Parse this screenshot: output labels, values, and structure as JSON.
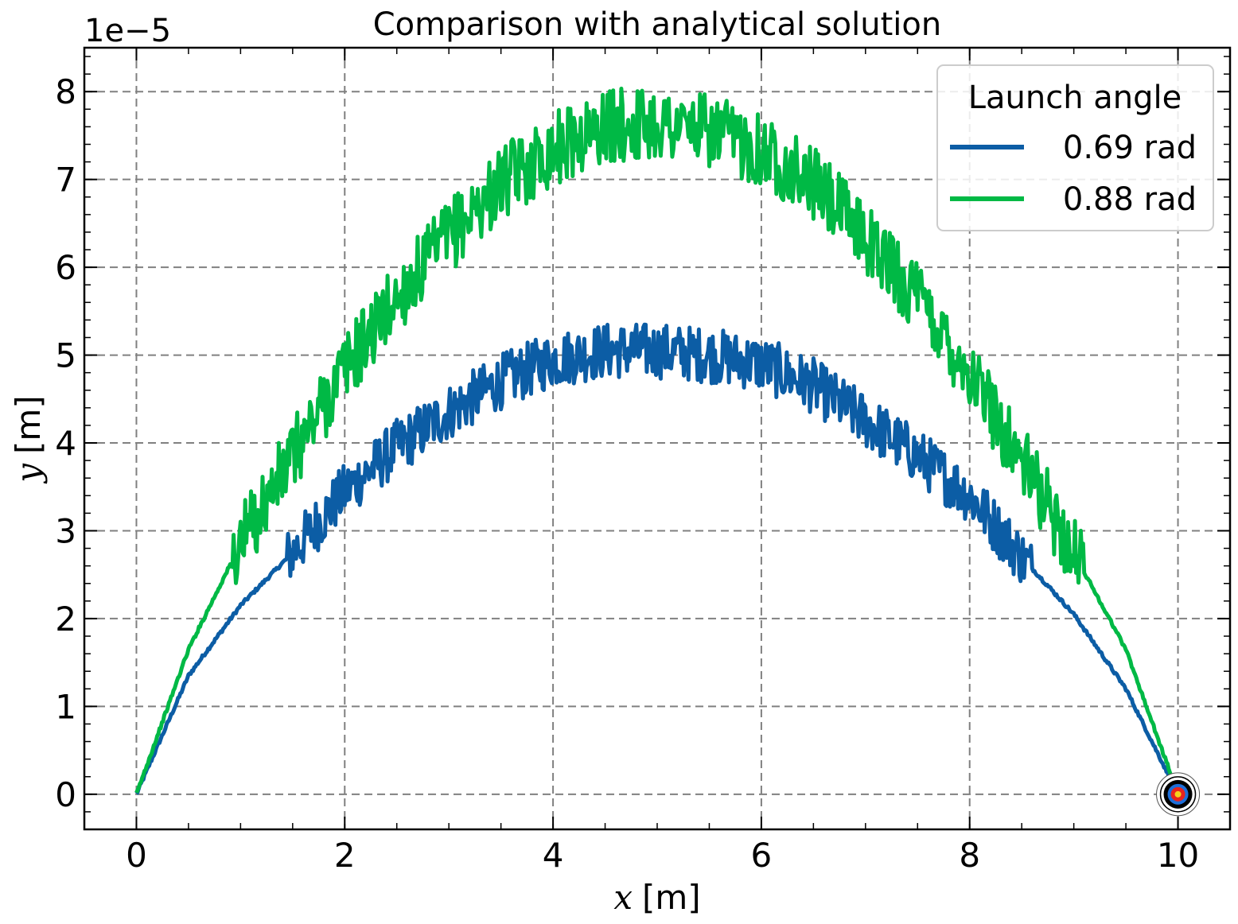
{
  "chart_data": {
    "type": "line",
    "title": "Comparison with analytical solution",
    "xlabel_var": "x",
    "xlabel_unit": "[m]",
    "ylabel_var": "y",
    "ylabel_unit": "[m]",
    "y_offset_text": "1e−5",
    "xlim": [
      -0.5,
      10.5
    ],
    "ylim": [
      -0.4,
      8.5
    ],
    "y_scale_factor": 1e-05,
    "x_ticks": [
      0,
      2,
      4,
      6,
      8,
      10
    ],
    "x_tick_labels": [
      "0",
      "2",
      "4",
      "6",
      "8",
      "10"
    ],
    "y_ticks": [
      0,
      1,
      2,
      3,
      4,
      5,
      6,
      7,
      8
    ],
    "y_tick_labels": [
      "0",
      "1",
      "2",
      "3",
      "4",
      "5",
      "6",
      "7",
      "8"
    ],
    "grid": true,
    "legend": {
      "title": "Launch angle",
      "position": "upper-right"
    },
    "target_marker": {
      "x": 10,
      "y": 0,
      "icon": "bullseye-target-icon"
    },
    "series": [
      {
        "name": "0.69 rad",
        "color": "#0c5da5",
        "x": [
          0,
          0.5,
          1.0,
          1.5,
          2.0,
          2.5,
          3.0,
          3.5,
          4.0,
          4.5,
          5.0,
          5.5,
          6.0,
          6.5,
          7.0,
          7.5,
          8.0,
          8.5,
          9.0,
          9.5,
          10.0
        ],
        "y": [
          0,
          1.35,
          2.15,
          2.75,
          3.45,
          3.95,
          4.35,
          4.7,
          4.95,
          5.05,
          5.05,
          5.0,
          4.9,
          4.65,
          4.25,
          3.85,
          3.4,
          2.7,
          2.05,
          1.2,
          0
        ]
      },
      {
        "name": "0.88 rad",
        "color": "#00b945",
        "x": [
          0,
          0.5,
          1.0,
          1.5,
          2.0,
          2.5,
          3.0,
          3.5,
          4.0,
          4.5,
          5.0,
          5.5,
          6.0,
          6.5,
          7.0,
          7.5,
          8.0,
          8.5,
          9.0,
          9.5,
          10.0
        ],
        "y": [
          0,
          1.65,
          2.85,
          3.85,
          4.85,
          5.65,
          6.35,
          6.95,
          7.35,
          7.6,
          7.65,
          7.55,
          7.35,
          6.95,
          6.35,
          5.65,
          4.8,
          3.8,
          2.75,
          1.65,
          0
        ]
      }
    ]
  }
}
